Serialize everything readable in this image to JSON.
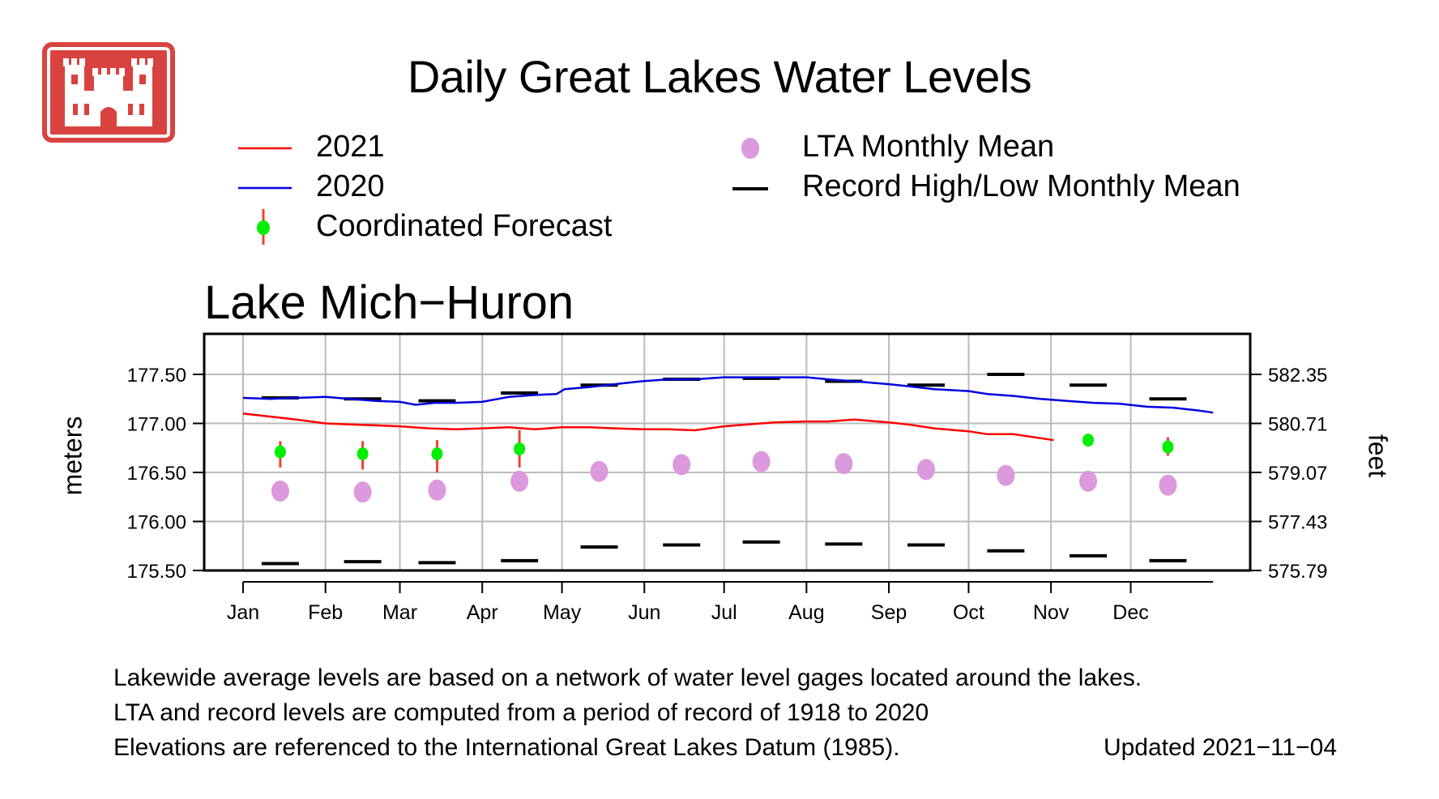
{
  "logo": {
    "colors": {
      "fill": "#d9433f",
      "stroke": "#ffffff"
    }
  },
  "title": "Daily Great Lakes Water Levels",
  "legend": {
    "items": [
      {
        "label": "2021",
        "symbol": "line",
        "color": "#ff0000"
      },
      {
        "label": "2020",
        "symbol": "line",
        "color": "#0000dd"
      },
      {
        "label": "Coordinated Forecast",
        "symbol": "point-with-bar",
        "color": "#00ee00",
        "bar_color": "#ee4433"
      },
      {
        "label": "LTA Monthly Mean",
        "symbol": "dot",
        "color": "#dd99dd"
      },
      {
        "label": "Record High/Low Monthly Mean",
        "symbol": "dash",
        "color": "#000000"
      }
    ]
  },
  "footnotes": {
    "line1": "Lakewide average levels are based on a network of water level gages located around the lakes.",
    "line2": "LTA and record levels are computed from a period of record of 1918 to  2020",
    "line3": "Elevations are referenced to the International Great Lakes Datum (1985).",
    "updated": "Updated 2021−11−04"
  },
  "chart_data": {
    "type": "line",
    "title": "Lake Mich−Huron",
    "ylabel": "meters",
    "ylabel_right": "feet",
    "xlim": [
      0,
      365
    ],
    "ylim": [
      175.5,
      177.85
    ],
    "grid": true,
    "month_ticks": {
      "labels": [
        "Jan",
        "Feb",
        "Mar",
        "Apr",
        "May",
        "Jun",
        "Jul",
        "Aug",
        "Sep",
        "Oct",
        "Nov",
        "Dec"
      ],
      "days": [
        0,
        31,
        59,
        90,
        120,
        151,
        181,
        212,
        243,
        273,
        304,
        334
      ]
    },
    "y_ticks": {
      "values": [
        175.5,
        176.0,
        176.5,
        177.0,
        177.5
      ],
      "labels": [
        "175.50",
        "176.00",
        "176.50",
        "177.00",
        "177.50"
      ]
    },
    "y_ticks_right": {
      "labels": [
        "575.79",
        "577.43",
        "579.07",
        "580.71",
        "582.35"
      ]
    },
    "month_centers": [
      14,
      45,
      73,
      104,
      134,
      165,
      195,
      226,
      257,
      287,
      318,
      348
    ],
    "series": [
      {
        "name": "2020",
        "color": "#0000dd",
        "x": [
          0,
          10,
          20,
          31,
          40,
          50,
          59,
          65,
          72,
          80,
          90,
          100,
          110,
          118,
          121,
          130,
          140,
          150,
          160,
          170,
          181,
          190,
          200,
          212,
          220,
          230,
          243,
          250,
          260,
          273,
          280,
          290,
          300,
          310,
          320,
          330,
          340,
          350,
          360,
          365
        ],
        "y": [
          177.26,
          177.25,
          177.26,
          177.27,
          177.25,
          177.23,
          177.22,
          177.19,
          177.21,
          177.21,
          177.22,
          177.27,
          177.29,
          177.3,
          177.35,
          177.37,
          177.4,
          177.43,
          177.45,
          177.45,
          177.47,
          177.47,
          177.47,
          177.47,
          177.45,
          177.43,
          177.4,
          177.38,
          177.35,
          177.33,
          177.3,
          177.28,
          177.25,
          177.23,
          177.21,
          177.2,
          177.17,
          177.16,
          177.13,
          177.11
        ]
      },
      {
        "name": "2021",
        "color": "#ff0000",
        "x": [
          0,
          10,
          20,
          31,
          40,
          50,
          59,
          70,
          80,
          90,
          100,
          110,
          120,
          130,
          140,
          151,
          160,
          170,
          181,
          190,
          200,
          212,
          220,
          230,
          243,
          250,
          260,
          273,
          280,
          290,
          300,
          305
        ],
        "y": [
          177.1,
          177.07,
          177.04,
          177.0,
          176.99,
          176.98,
          176.97,
          176.95,
          176.94,
          176.95,
          176.96,
          176.94,
          176.96,
          176.96,
          176.95,
          176.94,
          176.94,
          176.93,
          176.97,
          176.99,
          177.01,
          177.02,
          177.02,
          177.04,
          177.01,
          176.99,
          176.95,
          176.92,
          176.89,
          176.89,
          176.85,
          176.83
        ]
      }
    ],
    "lta_monthly_mean": {
      "name": "LTA Monthly Mean",
      "color": "#dd99dd",
      "values": [
        176.31,
        176.3,
        176.32,
        176.41,
        176.51,
        176.58,
        176.61,
        176.59,
        176.53,
        176.47,
        176.41,
        176.37
      ]
    },
    "record_high": {
      "name": "Record High Monthly Mean",
      "color": "#000000",
      "values": [
        177.26,
        177.25,
        177.23,
        177.31,
        177.39,
        177.45,
        177.46,
        177.43,
        177.39,
        177.5,
        177.39,
        177.25
      ]
    },
    "record_low": {
      "name": "Record Low Monthly Mean",
      "color": "#000000",
      "values": [
        175.57,
        175.59,
        175.58,
        175.6,
        175.74,
        175.76,
        175.79,
        175.77,
        175.76,
        175.7,
        175.65,
        175.6
      ]
    },
    "forecast": {
      "name": "Coordinated Forecast",
      "color": "#00ee00",
      "bar_color": "#ee4433",
      "months": [
        0,
        1,
        2,
        3,
        10,
        11
      ],
      "values": [
        176.71,
        176.69,
        176.69,
        176.74,
        176.83,
        176.76
      ],
      "low": [
        176.55,
        176.53,
        176.5,
        176.55,
        176.8,
        176.67
      ],
      "high": [
        176.82,
        176.82,
        176.83,
        176.93,
        176.86,
        176.86
      ]
    }
  }
}
